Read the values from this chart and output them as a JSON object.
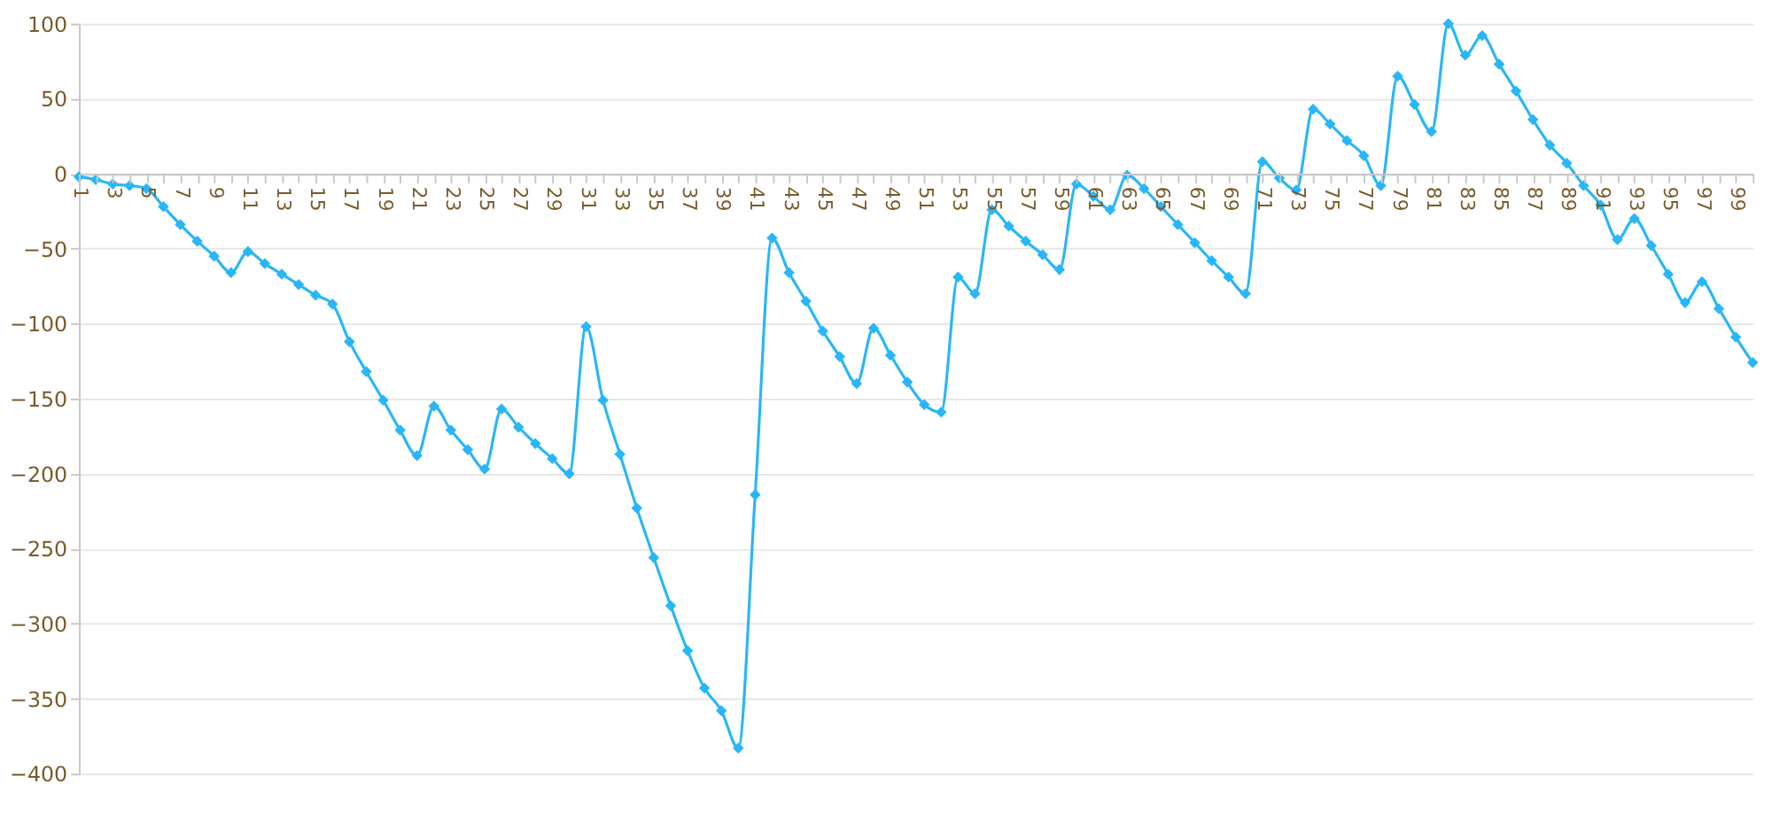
{
  "chart_data": {
    "type": "line",
    "categories": [
      "1",
      null,
      "3",
      null,
      "5",
      null,
      "7",
      null,
      "9",
      null,
      "11",
      null,
      "13",
      null,
      "15",
      null,
      "17",
      null,
      "19",
      null,
      "21",
      null,
      "23",
      null,
      "25",
      null,
      "27",
      null,
      "29",
      null,
      "31",
      null,
      "33",
      null,
      "35",
      null,
      "37",
      null,
      "39",
      null,
      "41",
      null,
      "43",
      null,
      "45",
      null,
      "47",
      null,
      "49",
      null,
      "51",
      null,
      "53",
      null,
      "55",
      null,
      "57",
      null,
      "59",
      null,
      "61",
      null,
      "63",
      null,
      "65",
      null,
      "67",
      null,
      "69",
      null,
      "71",
      null,
      "73",
      null,
      "75",
      null,
      "77",
      null,
      "79",
      null,
      "81",
      null,
      "83",
      null,
      "85",
      null,
      "87",
      null,
      "89",
      null,
      "91",
      null,
      "93",
      null,
      "95",
      null,
      "97",
      null,
      "99",
      null
    ],
    "series": [
      {
        "color": "#29b6f6",
        "values": [
          -2,
          -4,
          -7,
          -8,
          -10,
          -22,
          -34,
          -45,
          -55,
          -66,
          -52,
          -60,
          -67,
          -74,
          -81,
          -87,
          -112,
          -132,
          -151,
          -171,
          -188,
          -155,
          -171,
          -184,
          -197,
          -157,
          -169,
          -180,
          -190,
          -200,
          -102,
          -151,
          -187,
          -223,
          -256,
          -288,
          -318,
          -343,
          -358,
          -383,
          -214,
          -43,
          -66,
          -85,
          -105,
          -122,
          -140,
          -103,
          -121,
          -139,
          -154,
          -159,
          -69,
          -80,
          -24,
          -35,
          -45,
          -54,
          -64,
          -7,
          -15,
          -24,
          -1,
          -10,
          -22,
          -34,
          -46,
          -58,
          -69,
          -80,
          8,
          -3,
          -11,
          43,
          33,
          22,
          12,
          -8,
          65,
          46,
          28,
          100,
          79,
          92,
          73,
          55,
          36,
          19,
          7,
          -8,
          -21,
          -44,
          -30,
          -48,
          -67,
          -86,
          -72,
          -90,
          -109,
          -126
        ]
      }
    ],
    "ylim": [
      -400,
      100
    ],
    "yticks": [
      -400,
      -350,
      -300,
      -250,
      -200,
      -150,
      -100,
      -50,
      0,
      50,
      100
    ],
    "grid": "y",
    "marker": "diamond",
    "line_style": "solid"
  }
}
